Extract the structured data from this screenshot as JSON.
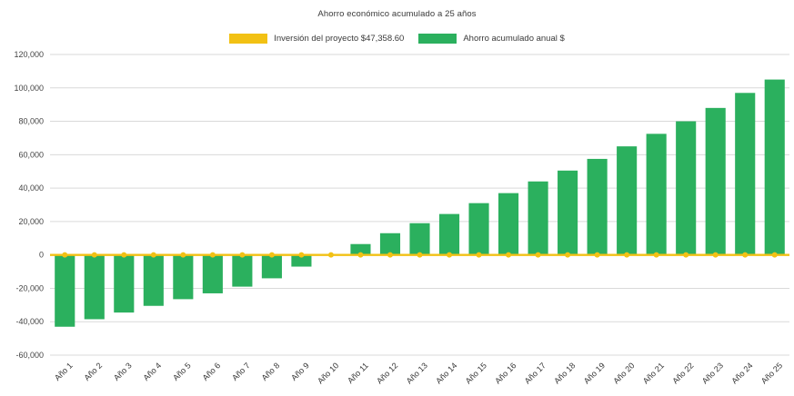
{
  "chart": {
    "title": "Ahorro económico acumulado a 25 años",
    "legend": [
      {
        "label": "Inversión del proyecto $47,358.60",
        "color": "#F2C114",
        "sample": "line"
      },
      {
        "label": "Ahorro acumulado anual $",
        "color": "#2BB05E",
        "sample": "bar"
      }
    ]
  },
  "chart_data": {
    "type": "bar",
    "title": "Ahorro económico acumulado a 25 años",
    "categories": [
      "Año 1",
      "Año 2",
      "Año 3",
      "Año 4",
      "Año 5",
      "Año 6",
      "Año 7",
      "Año 8",
      "Año 9",
      "Año 10",
      "Año 11",
      "Año 12",
      "Año 13",
      "Año 14",
      "Año 15",
      "Año 16",
      "Año 17",
      "Año 18",
      "Año 19",
      "Año 20",
      "Año 21",
      "Año 22",
      "Año 23",
      "Año 24",
      "Año 25"
    ],
    "series": [
      {
        "name": "Ahorro acumulado anual $",
        "type": "bar",
        "color": "#2BB05E",
        "values": [
          -43000,
          -38500,
          -34500,
          -30500,
          -26500,
          -23000,
          -19000,
          -14000,
          -7000,
          500,
          6500,
          13000,
          19000,
          24500,
          31000,
          37000,
          44000,
          50500,
          57500,
          65000,
          72500,
          80000,
          88000,
          97000,
          105000
        ]
      },
      {
        "name": "Inversión del proyecto $47,358.60",
        "type": "line",
        "color": "#F2C114",
        "values": [
          0,
          0,
          0,
          0,
          0,
          0,
          0,
          0,
          0,
          0,
          0,
          0,
          0,
          0,
          0,
          0,
          0,
          0,
          0,
          0,
          0,
          0,
          0,
          0,
          0
        ]
      }
    ],
    "xlabel": "",
    "ylabel": "",
    "ylim": [
      -60000,
      120000
    ],
    "ytick_step": 20000,
    "ytick_labels": [
      "-60,000",
      "-40,000",
      "-20,000",
      "0",
      "20,000",
      "40,000",
      "60,000",
      "80,000",
      "100,000",
      "120,000"
    ],
    "grid": true,
    "legend_position": "top",
    "gridline_color": "#d9d9d9",
    "tick_label_color": "#444444"
  }
}
